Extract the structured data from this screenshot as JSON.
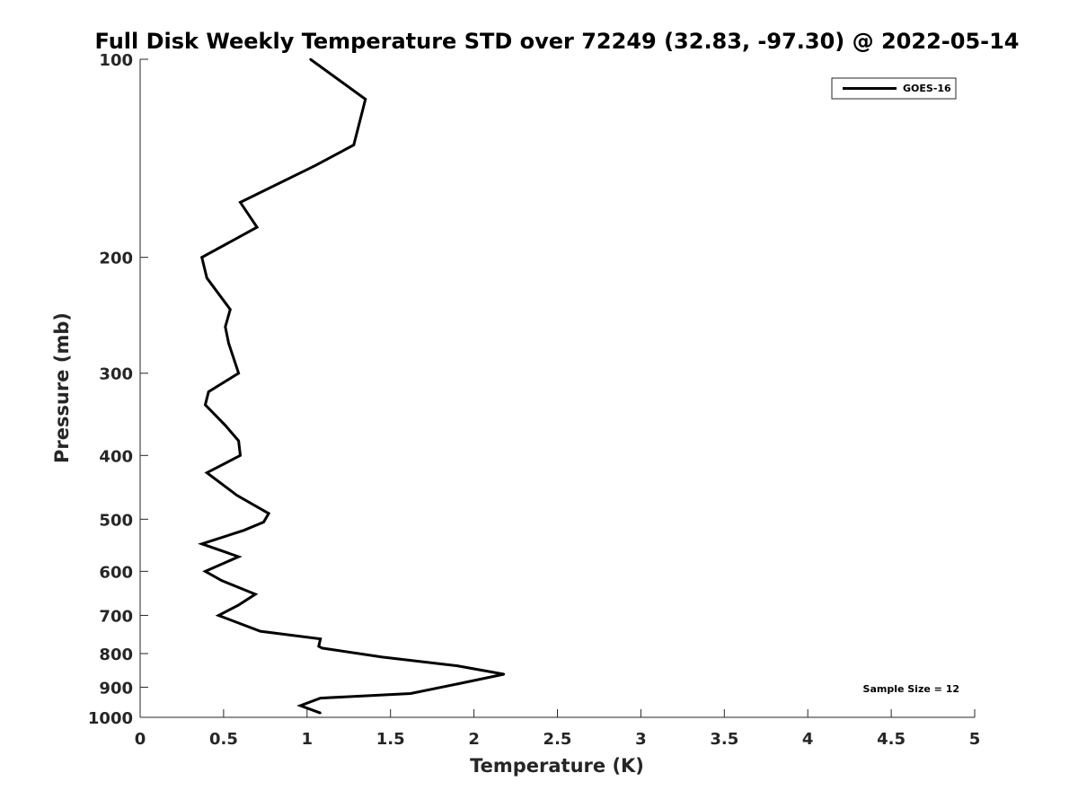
{
  "chart_data": {
    "type": "line",
    "title": "Full Disk Weekly Temperature STD over 72249 (32.83, -97.30) @ 2022-05-14",
    "xlabel": "Temperature (K)",
    "ylabel": "Pressure (mb)",
    "xlim": [
      0,
      5
    ],
    "ylim": [
      100,
      1000
    ],
    "y_scale": "log",
    "y_reversed": true,
    "x_ticks": [
      "0",
      "0.5",
      "1",
      "1.5",
      "2",
      "2.5",
      "3",
      "3.5",
      "4",
      "4.5",
      "5"
    ],
    "y_ticks": [
      "100",
      "200",
      "300",
      "400",
      "500",
      "600",
      "700",
      "800",
      "900",
      "1000"
    ],
    "grid": false,
    "legend_position": "top-right",
    "annotation": "Sample Size = 12",
    "series": [
      {
        "name": "GOES-16",
        "color": "#000000",
        "points": [
          {
            "x": 1.02,
            "y": 100
          },
          {
            "x": 1.35,
            "y": 115
          },
          {
            "x": 1.28,
            "y": 135
          },
          {
            "x": 1.05,
            "y": 145
          },
          {
            "x": 0.6,
            "y": 165
          },
          {
            "x": 0.7,
            "y": 180
          },
          {
            "x": 0.37,
            "y": 200
          },
          {
            "x": 0.4,
            "y": 215
          },
          {
            "x": 0.54,
            "y": 240
          },
          {
            "x": 0.51,
            "y": 255
          },
          {
            "x": 0.53,
            "y": 270
          },
          {
            "x": 0.59,
            "y": 300
          },
          {
            "x": 0.41,
            "y": 320
          },
          {
            "x": 0.39,
            "y": 335
          },
          {
            "x": 0.51,
            "y": 360
          },
          {
            "x": 0.59,
            "y": 380
          },
          {
            "x": 0.6,
            "y": 400
          },
          {
            "x": 0.4,
            "y": 425
          },
          {
            "x": 0.58,
            "y": 460
          },
          {
            "x": 0.77,
            "y": 490
          },
          {
            "x": 0.74,
            "y": 505
          },
          {
            "x": 0.62,
            "y": 520
          },
          {
            "x": 0.37,
            "y": 545
          },
          {
            "x": 0.59,
            "y": 570
          },
          {
            "x": 0.39,
            "y": 600
          },
          {
            "x": 0.49,
            "y": 620
          },
          {
            "x": 0.69,
            "y": 650
          },
          {
            "x": 0.59,
            "y": 675
          },
          {
            "x": 0.47,
            "y": 700
          },
          {
            "x": 0.72,
            "y": 740
          },
          {
            "x": 1.08,
            "y": 760
          },
          {
            "x": 1.07,
            "y": 780
          },
          {
            "x": 1.09,
            "y": 785
          },
          {
            "x": 1.45,
            "y": 810
          },
          {
            "x": 1.9,
            "y": 835
          },
          {
            "x": 2.18,
            "y": 860
          },
          {
            "x": 1.9,
            "y": 890
          },
          {
            "x": 1.62,
            "y": 920
          },
          {
            "x": 1.08,
            "y": 935
          },
          {
            "x": 0.96,
            "y": 960
          },
          {
            "x": 1.08,
            "y": 985
          }
        ]
      }
    ]
  }
}
